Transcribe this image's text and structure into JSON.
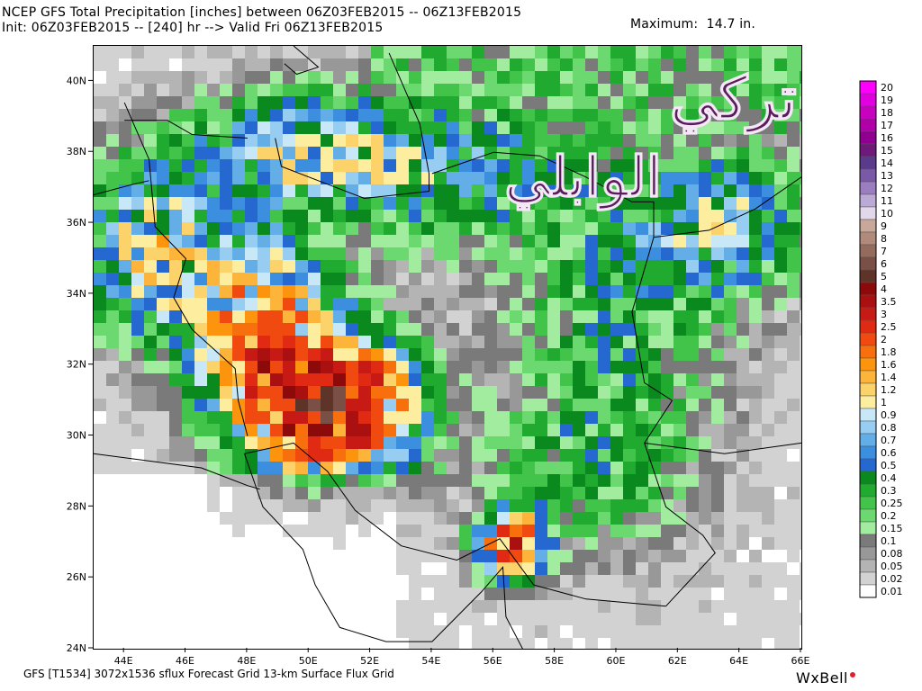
{
  "header": {
    "line1": "NCEP GFS Total Precipitation [inches] between 06Z03FEB2015 -- 06Z13FEB2015",
    "line2": "Init: 06Z03FEB2015 -- [240] hr --> Valid Fri 06Z13FEB2015",
    "maximum": "Maximum:  14.7 in."
  },
  "footer": {
    "model_info": "GFS [T1534] 3072x1536 sflux Forecast Grid 13-km Surface Flux Grid",
    "logo": "WxBell"
  },
  "watermark": {
    "line1": "تركي",
    "line2": "الوابلي"
  },
  "chart_data": {
    "type": "heatmap",
    "title": "NCEP GFS Total Precipitation [inches] between 06Z03FEB2015 -- 06Z13FEB2015",
    "maximum_in": 14.7,
    "x_axis": {
      "range_deg_e": [
        43,
        66
      ],
      "tick_labels": [
        "44E",
        "46E",
        "48E",
        "50E",
        "52E",
        "54E",
        "56E",
        "58E",
        "60E",
        "62E",
        "64E",
        "66E"
      ]
    },
    "y_axis": {
      "range_deg_n": [
        24,
        41
      ],
      "tick_labels": [
        "24N",
        "26N",
        "28N",
        "30N",
        "32N",
        "34N",
        "36N",
        "38N",
        "40N"
      ]
    },
    "legend": {
      "placement": "right",
      "levels": [
        {
          "label": "20",
          "color": "#ff00ff"
        },
        {
          "label": "19",
          "color": "#e000e0"
        },
        {
          "label": "18",
          "color": "#c800c0"
        },
        {
          "label": "17",
          "color": "#b000a8"
        },
        {
          "label": "16",
          "color": "#900090"
        },
        {
          "label": "15",
          "color": "#6e1a7a"
        },
        {
          "label": "14",
          "color": "#5a3a8a"
        },
        {
          "label": "13",
          "color": "#7a5aa8"
        },
        {
          "label": "12",
          "color": "#9a7ec0"
        },
        {
          "label": "11",
          "color": "#bcaad6"
        },
        {
          "label": "10",
          "color": "#e2d8ec"
        },
        {
          "label": "9",
          "color": "#c8a89a"
        },
        {
          "label": "8",
          "color": "#b08a7a"
        },
        {
          "label": "7",
          "color": "#946c5e"
        },
        {
          "label": "6",
          "color": "#7a5046"
        },
        {
          "label": "5",
          "color": "#5e3428"
        },
        {
          "label": "4",
          "color": "#8c0a0a"
        },
        {
          "label": "3.5",
          "color": "#aa1010"
        },
        {
          "label": "3",
          "color": "#c81a14"
        },
        {
          "label": "2.5",
          "color": "#e02a14"
        },
        {
          "label": "2",
          "color": "#f04a10"
        },
        {
          "label": "1.8",
          "color": "#f8700e"
        },
        {
          "label": "1.6",
          "color": "#fc940e"
        },
        {
          "label": "1.4",
          "color": "#fcb43a"
        },
        {
          "label": "1.2",
          "color": "#fcd26a"
        },
        {
          "label": "1",
          "color": "#fcee9e"
        },
        {
          "label": "0.9",
          "color": "#c8e8f8"
        },
        {
          "label": "0.8",
          "color": "#98cdf2"
        },
        {
          "label": "0.7",
          "color": "#64aee8"
        },
        {
          "label": "0.6",
          "color": "#3c8ede"
        },
        {
          "label": "0.5",
          "color": "#2468d0"
        },
        {
          "label": "0.4",
          "color": "#0a8a1e"
        },
        {
          "label": "0.3",
          "color": "#20aa30"
        },
        {
          "label": "0.25",
          "color": "#42c44a"
        },
        {
          "label": "0.2",
          "color": "#6cd870"
        },
        {
          "label": "0.15",
          "color": "#a2eca0"
        },
        {
          "label": "0.1",
          "color": "#7a7a7a"
        },
        {
          "label": "0.08",
          "color": "#989898"
        },
        {
          "label": "0.05",
          "color": "#b4b4b4"
        },
        {
          "label": "0.02",
          "color": "#d2d2d2"
        },
        {
          "label": "0.01",
          "color": "#ffffff"
        }
      ]
    }
  }
}
